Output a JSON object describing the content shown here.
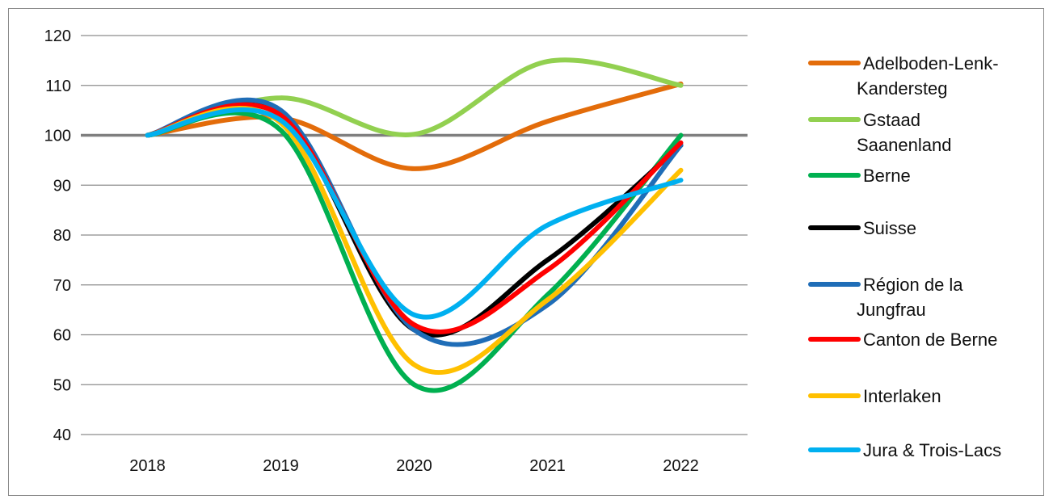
{
  "chart_data": {
    "type": "line",
    "title": "",
    "xlabel": "",
    "ylabel": "",
    "x": [
      "2018",
      "2019",
      "2020",
      "2021",
      "2022"
    ],
    "ylim": [
      40,
      120
    ],
    "yticks": [
      "40",
      "50",
      "60",
      "70",
      "80",
      "90",
      "100",
      "110",
      "120"
    ],
    "grid": true,
    "reference_line": 100,
    "legend_position": "right",
    "series": [
      {
        "name": "Adelboden-Lenk-Kandersteg",
        "label_lines": [
          "Adelboden-Lenk-",
          "Kandersteg"
        ],
        "color": "#E36C0A",
        "values": [
          100,
          103.5,
          93.3,
          102.8,
          110.3
        ]
      },
      {
        "name": "Gstaad Saanenland",
        "label_lines": [
          "Gstaad",
          "Saanenland"
        ],
        "color": "#92D050",
        "values": [
          100,
          107.5,
          100.2,
          114.8,
          110
        ]
      },
      {
        "name": "Berne",
        "label_lines": [
          "Berne"
        ],
        "color": "#00B050",
        "values": [
          100,
          101,
          50,
          68,
          100
        ]
      },
      {
        "name": "Suisse",
        "label_lines": [
          "Suisse"
        ],
        "color": "#000000",
        "values": [
          100,
          104,
          61,
          75,
          98
        ]
      },
      {
        "name": "Région de la Jungfrau",
        "label_lines": [
          "Région de la",
          "Jungfrau"
        ],
        "color": "#1F6DB7",
        "values": [
          100,
          105,
          61,
          66,
          98
        ]
      },
      {
        "name": "Canton de Berne",
        "label_lines": [
          "Canton de Berne"
        ],
        "color": "#FF0000",
        "values": [
          100,
          104,
          62,
          73,
          98.5
        ]
      },
      {
        "name": "Interlaken",
        "label_lines": [
          "Interlaken"
        ],
        "color": "#FFC000",
        "values": [
          100,
          102.5,
          54,
          67,
          93
        ]
      },
      {
        "name": "Jura & Trois-Lacs",
        "label_lines": [
          "Jura & Trois-Lacs"
        ],
        "color": "#00B0F0",
        "values": [
          100,
          103,
          64,
          82,
          91
        ]
      }
    ]
  }
}
